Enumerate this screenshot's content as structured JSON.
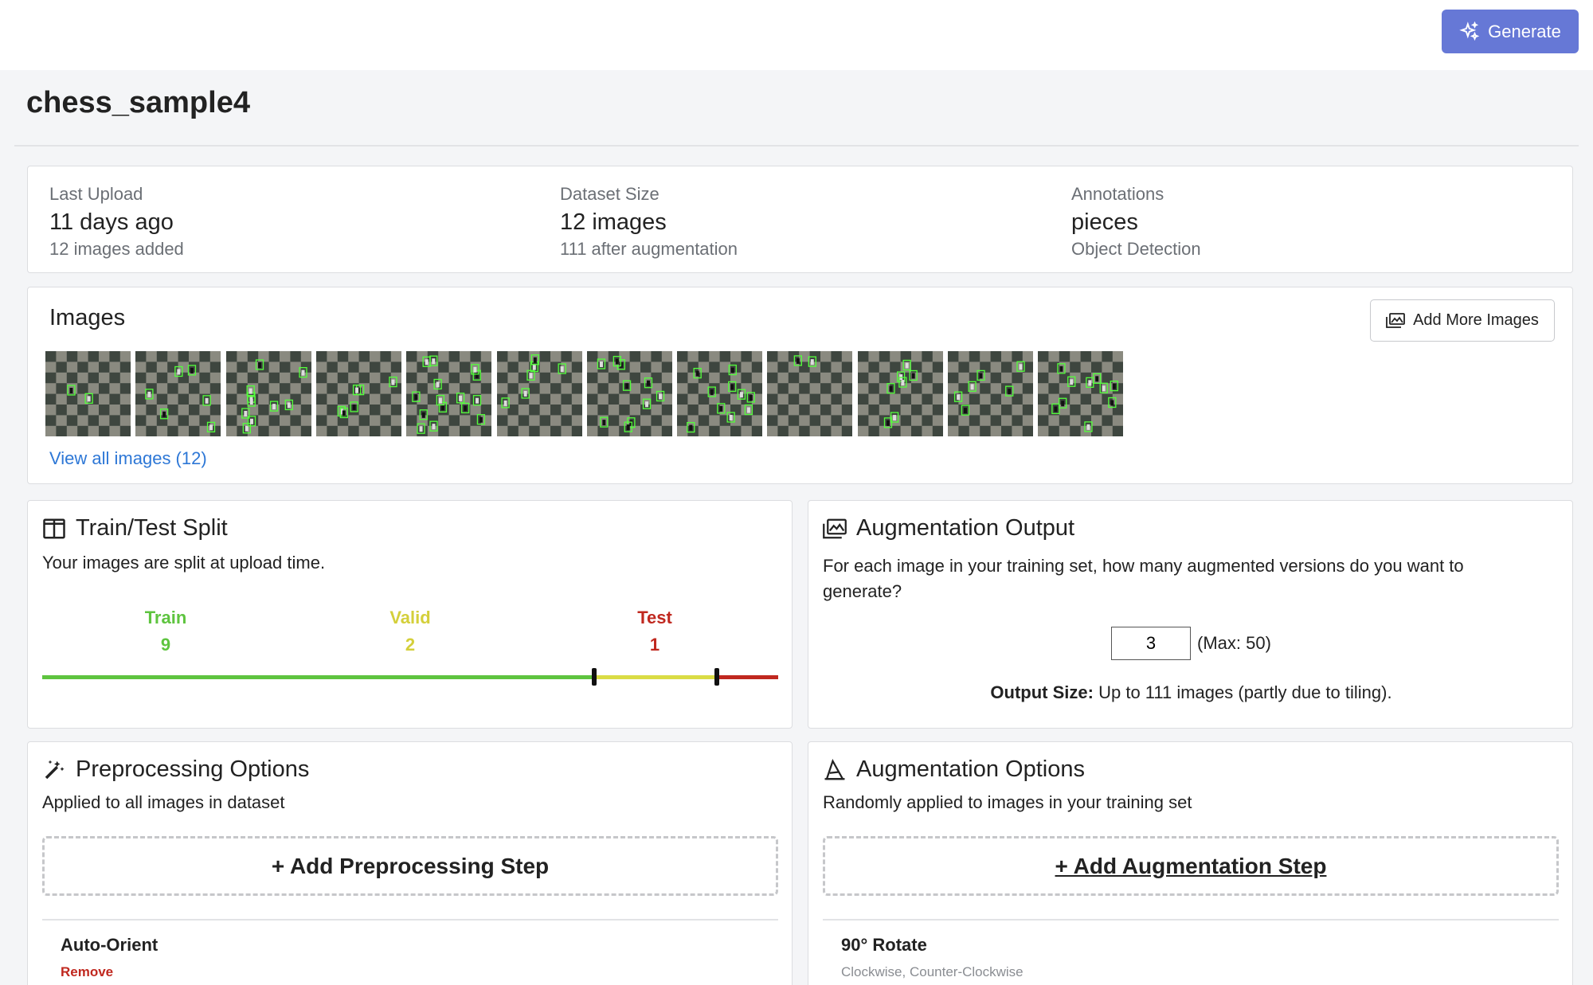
{
  "header": {
    "generate_label": "Generate"
  },
  "dataset": {
    "name": "chess_sample4"
  },
  "stats": {
    "last_upload": {
      "label": "Last Upload",
      "value": "11 days ago",
      "sub": "12 images added"
    },
    "dataset_size": {
      "label": "Dataset Size",
      "value": "12 images",
      "sub": "111 after augmentation"
    },
    "annotations": {
      "label": "Annotations",
      "value": "pieces",
      "sub": "Object Detection"
    }
  },
  "images": {
    "title": "Images",
    "add_more_label": "Add More Images",
    "view_all_label": "View all images (12)",
    "thumbnail_count": 12
  },
  "split": {
    "title": "Train/Test Split",
    "description": "Your images are split at upload time.",
    "train": {
      "label": "Train",
      "count": "9"
    },
    "valid": {
      "label": "Valid",
      "count": "2"
    },
    "test": {
      "label": "Test",
      "count": "1"
    },
    "colors": {
      "train": "#5ec43f",
      "valid": "#dadc45",
      "test": "#c0281f"
    }
  },
  "augmentation_output": {
    "title": "Augmentation Output",
    "description": "For each image in your training set, how many augmented versions do you want to generate?",
    "value": "3",
    "max_label": "(Max: 50)",
    "output_size_label": "Output Size:",
    "output_size_text": "Up to 111 images (partly due to tiling)."
  },
  "preprocessing": {
    "title": "Preprocessing Options",
    "description": "Applied to all images in dataset",
    "add_step_label": "+ Add Preprocessing Step",
    "steps": [
      {
        "name": "Auto-Orient",
        "action": "Remove"
      }
    ]
  },
  "augmentation_options": {
    "title": "Augmentation Options",
    "description": "Randomly applied to images in your training set",
    "add_step_label": "+ Add Augmentation Step",
    "steps": [
      {
        "name": "90° Rotate",
        "detail": "Clockwise, Counter-Clockwise"
      }
    ]
  }
}
